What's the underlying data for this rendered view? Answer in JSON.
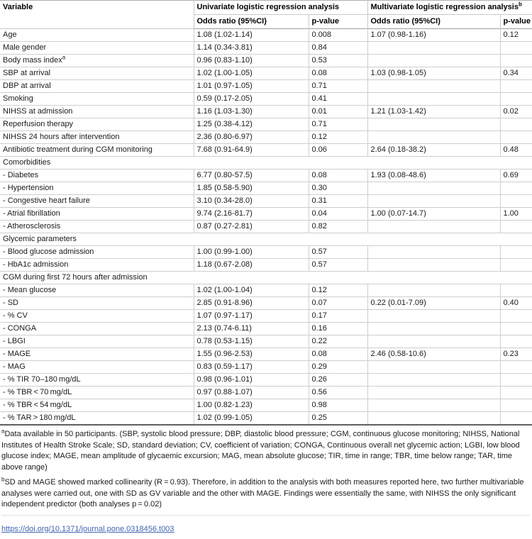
{
  "colors": {
    "link": "#4265b0",
    "border_light": "#cecece",
    "border_dark": "#5f5f5f"
  },
  "table": {
    "header": {
      "variable": "Variable",
      "univariate_group": "Univariate logistic regression analysis",
      "multivariate_group": "Multivariate logistic regression analysis",
      "multivariate_sup": "b",
      "or_label": "Odds ratio (95%CI)",
      "p_label": "p-value"
    },
    "rows": [
      {
        "type": "data",
        "variable": "Age",
        "uni_or": "1.08 (1.02-1.14)",
        "uni_p": "0.008",
        "multi_or": "1.07 (0.98-1.16)",
        "multi_p": "0.12"
      },
      {
        "type": "data",
        "variable": "Male gender",
        "uni_or": "1.14 (0.34-3.81)",
        "uni_p": "0.84",
        "multi_or": "",
        "multi_p": ""
      },
      {
        "type": "data",
        "variable": "Body mass index",
        "sup": "a",
        "uni_or": "0.96 (0.83-1.10)",
        "uni_p": "0.53",
        "multi_or": "",
        "multi_p": ""
      },
      {
        "type": "data",
        "variable": "SBP at arrival",
        "uni_or": "1.02 (1.00-1.05)",
        "uni_p": "0.08",
        "multi_or": "1.03 (0.98-1.05)",
        "multi_p": "0.34"
      },
      {
        "type": "data",
        "variable": "DBP at arrival",
        "uni_or": "1.01 (0.97-1.05)",
        "uni_p": "0.71",
        "multi_or": "",
        "multi_p": ""
      },
      {
        "type": "data",
        "variable": "Smoking",
        "uni_or": "0.59 (0.17-2.05)",
        "uni_p": "0.41",
        "multi_or": "",
        "multi_p": ""
      },
      {
        "type": "data",
        "variable": "NIHSS at admission",
        "uni_or": "1.16 (1.03-1.30)",
        "uni_p": "0.01",
        "multi_or": "1.21 (1.03-1.42)",
        "multi_p": "0.02"
      },
      {
        "type": "data",
        "variable": "Reperfusion therapy",
        "uni_or": "1.25 (0.38-4.12)",
        "uni_p": "0.71",
        "multi_or": "",
        "multi_p": ""
      },
      {
        "type": "data",
        "variable": "NIHSS 24 hours after intervention",
        "uni_or": "2.36 (0.80-6.97)",
        "uni_p": "0.12",
        "multi_or": "",
        "multi_p": ""
      },
      {
        "type": "data",
        "variable": "Antibiotic treatment during CGM monitoring",
        "uni_or": "7.68 (0.91-64.9)",
        "uni_p": "0.06",
        "multi_or": "2.64 (0.18-38.2)",
        "multi_p": "0.48"
      },
      {
        "type": "section",
        "label": "Comorbidities"
      },
      {
        "type": "data",
        "variable": "- Diabetes",
        "uni_or": "6.77 (0.80-57.5)",
        "uni_p": "0.08",
        "multi_or": "1.93 (0.08-48.6)",
        "multi_p": "0.69"
      },
      {
        "type": "data",
        "variable": "- Hypertension",
        "uni_or": "1.85 (0.58-5.90)",
        "uni_p": "0.30",
        "multi_or": "",
        "multi_p": ""
      },
      {
        "type": "data",
        "variable": "- Congestive heart failure",
        "uni_or": "3.10 (0.34-28.0)",
        "uni_p": "0.31",
        "multi_or": "",
        "multi_p": ""
      },
      {
        "type": "data",
        "variable": "- Atrial fibrillation",
        "uni_or": "9.74 (2.16-81.7)",
        "uni_p": "0.04",
        "multi_or": "1.00 (0.07-14.7)",
        "multi_p": "1.00"
      },
      {
        "type": "data",
        "variable": "- Atherosclerosis",
        "uni_or": "0.87 (0.27-2.81)",
        "uni_p": "0.82",
        "multi_or": "",
        "multi_p": ""
      },
      {
        "type": "section",
        "label": "Glycemic parameters"
      },
      {
        "type": "data",
        "variable": "- Blood glucose admission",
        "uni_or": "1.00 (0.99-1.00)",
        "uni_p": "0.57",
        "multi_or": "",
        "multi_p": ""
      },
      {
        "type": "data",
        "variable": "- HbA1c admission",
        "uni_or": "1.18 (0.67-2.08)",
        "uni_p": "0.57",
        "multi_or": "",
        "multi_p": ""
      },
      {
        "type": "section",
        "label": "CGM during first 72 hours after admission"
      },
      {
        "type": "data",
        "variable": "- Mean glucose",
        "uni_or": "1.02 (1.00-1.04)",
        "uni_p": "0.12",
        "multi_or": "",
        "multi_p": ""
      },
      {
        "type": "data",
        "variable": "- SD",
        "uni_or": "2.85 (0.91-8.96)",
        "uni_p": "0.07",
        "multi_or": "0.22 (0.01-7.09)",
        "multi_p": "0.40"
      },
      {
        "type": "data",
        "variable": "- % CV",
        "uni_or": "1.07 (0.97-1.17)",
        "uni_p": "0.17",
        "multi_or": "",
        "multi_p": ""
      },
      {
        "type": "data",
        "variable": "- CONGA",
        "uni_or": "2.13 (0.74-6.11)",
        "uni_p": "0.16",
        "multi_or": "",
        "multi_p": ""
      },
      {
        "type": "data",
        "variable": "- LBGI",
        "uni_or": "0.78 (0.53-1.15)",
        "uni_p": "0.22",
        "multi_or": "",
        "multi_p": ""
      },
      {
        "type": "data",
        "variable": "- MAGE",
        "uni_or": "1.55 (0.96-2.53)",
        "uni_p": "0.08",
        "multi_or": "2.46 (0.58-10.6)",
        "multi_p": "0.23"
      },
      {
        "type": "data",
        "variable": "- MAG",
        "uni_or": "0.83 (0.59-1.17)",
        "uni_p": "0.29",
        "multi_or": "",
        "multi_p": ""
      },
      {
        "type": "data",
        "variable": "- % TIR 70–180 mg/dL",
        "uni_or": "0.98 (0.96-1.01)",
        "uni_p": "0.26",
        "multi_or": "",
        "multi_p": ""
      },
      {
        "type": "data",
        "variable": "- % TBR < 70 mg/dL",
        "uni_or": "0.97 (0.88-1.07)",
        "uni_p": "0.56",
        "multi_or": "",
        "multi_p": ""
      },
      {
        "type": "data",
        "variable": "- % TBR < 54 mg/dL",
        "uni_or": "1.00 (0.82-1.23)",
        "uni_p": "0.98",
        "multi_or": "",
        "multi_p": ""
      },
      {
        "type": "data",
        "variable": "- % TAR > 180 mg/dL",
        "uni_or": "1.02 (0.99-1.05)",
        "uni_p": "0.25",
        "multi_or": "",
        "multi_p": ""
      }
    ]
  },
  "footnotes": {
    "a_sup": "a",
    "a_text": "Data available in 50 participants. (SBP, systolic blood pressure; DBP, diastolic blood pressure; CGM, continuous glucose monitoring; NIHSS, National Institutes of Health Stroke Scale; SD, standard deviation; CV, coefficient of variation; CONGA, Continuous overall net glycemic action; LGBI, low blood glucose index; MAGE, mean amplitude of glycaemic excursion; MAG, mean absolute glucose; TIR, time in range; TBR, time below range; TAR, time above range)",
    "b_sup": "b",
    "b_text": "SD and MAGE showed marked collinearity (R = 0.93). Therefore, in addition to the analysis with both measures reported here, two further multivariable analyses were carried out, one with SD as GV variable and the other with MAGE. Findings were essentially the same, with NIHSS the only significant independent predictor (both analyses p = 0.02)"
  },
  "doi": "https://doi.org/10.1371/journal.pone.0318456.t003"
}
